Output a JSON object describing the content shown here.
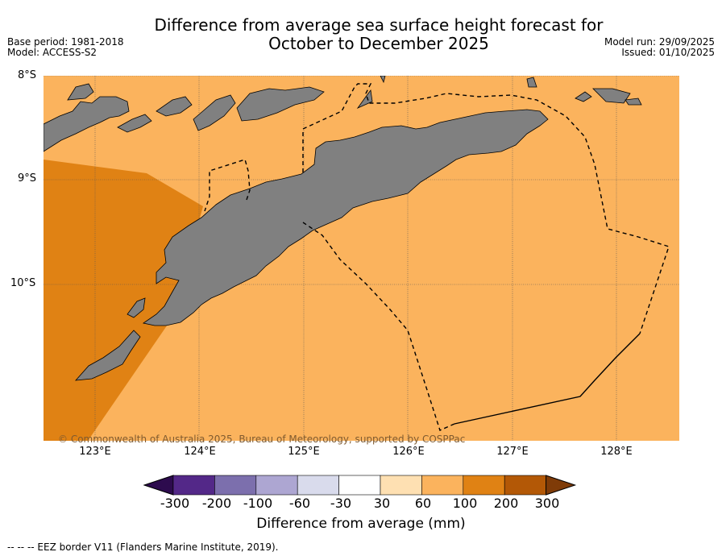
{
  "title_line1": "Difference from average sea surface height forecast for",
  "title_line2": "October to December 2025",
  "base_period": "Base period: 1981-2018",
  "model": "Model: ACCESS-S2",
  "model_run": "Model run: 29/09/2025",
  "issued": "Issued: 01/10/2025",
  "lat_labels": [
    "8°S",
    "9°S",
    "10°S"
  ],
  "lon_labels": [
    "123°E",
    "124°E",
    "125°E",
    "126°E",
    "127°E",
    "128°E"
  ],
  "copyright": "© Commonwealth of Australia 2025, Bureau of Meteorology, supported by COSPPac",
  "colorbar": {
    "label": "Difference from average (mm)",
    "ticks": [
      "-300",
      "-200",
      "-100",
      "-60",
      "-30",
      "30",
      "60",
      "100",
      "200",
      "300"
    ],
    "colors": {
      "below_min": "#2d0b4e",
      "bins": [
        "#532888",
        "#7c6fad",
        "#ada6d2",
        "#d9dbec",
        "#ffffff",
        "#fee0b2",
        "#fbb35d",
        "#e08214",
        "#b35806"
      ],
      "above_max": "#7f3b08"
    }
  },
  "map_colors": {
    "land": "#808080",
    "bin_60_100": "#fbb35d",
    "bin_100_200": "#e08214"
  },
  "eez_note": "--  --  -- EEZ border V11 (Flanders Marine Institute, 2019)."
}
